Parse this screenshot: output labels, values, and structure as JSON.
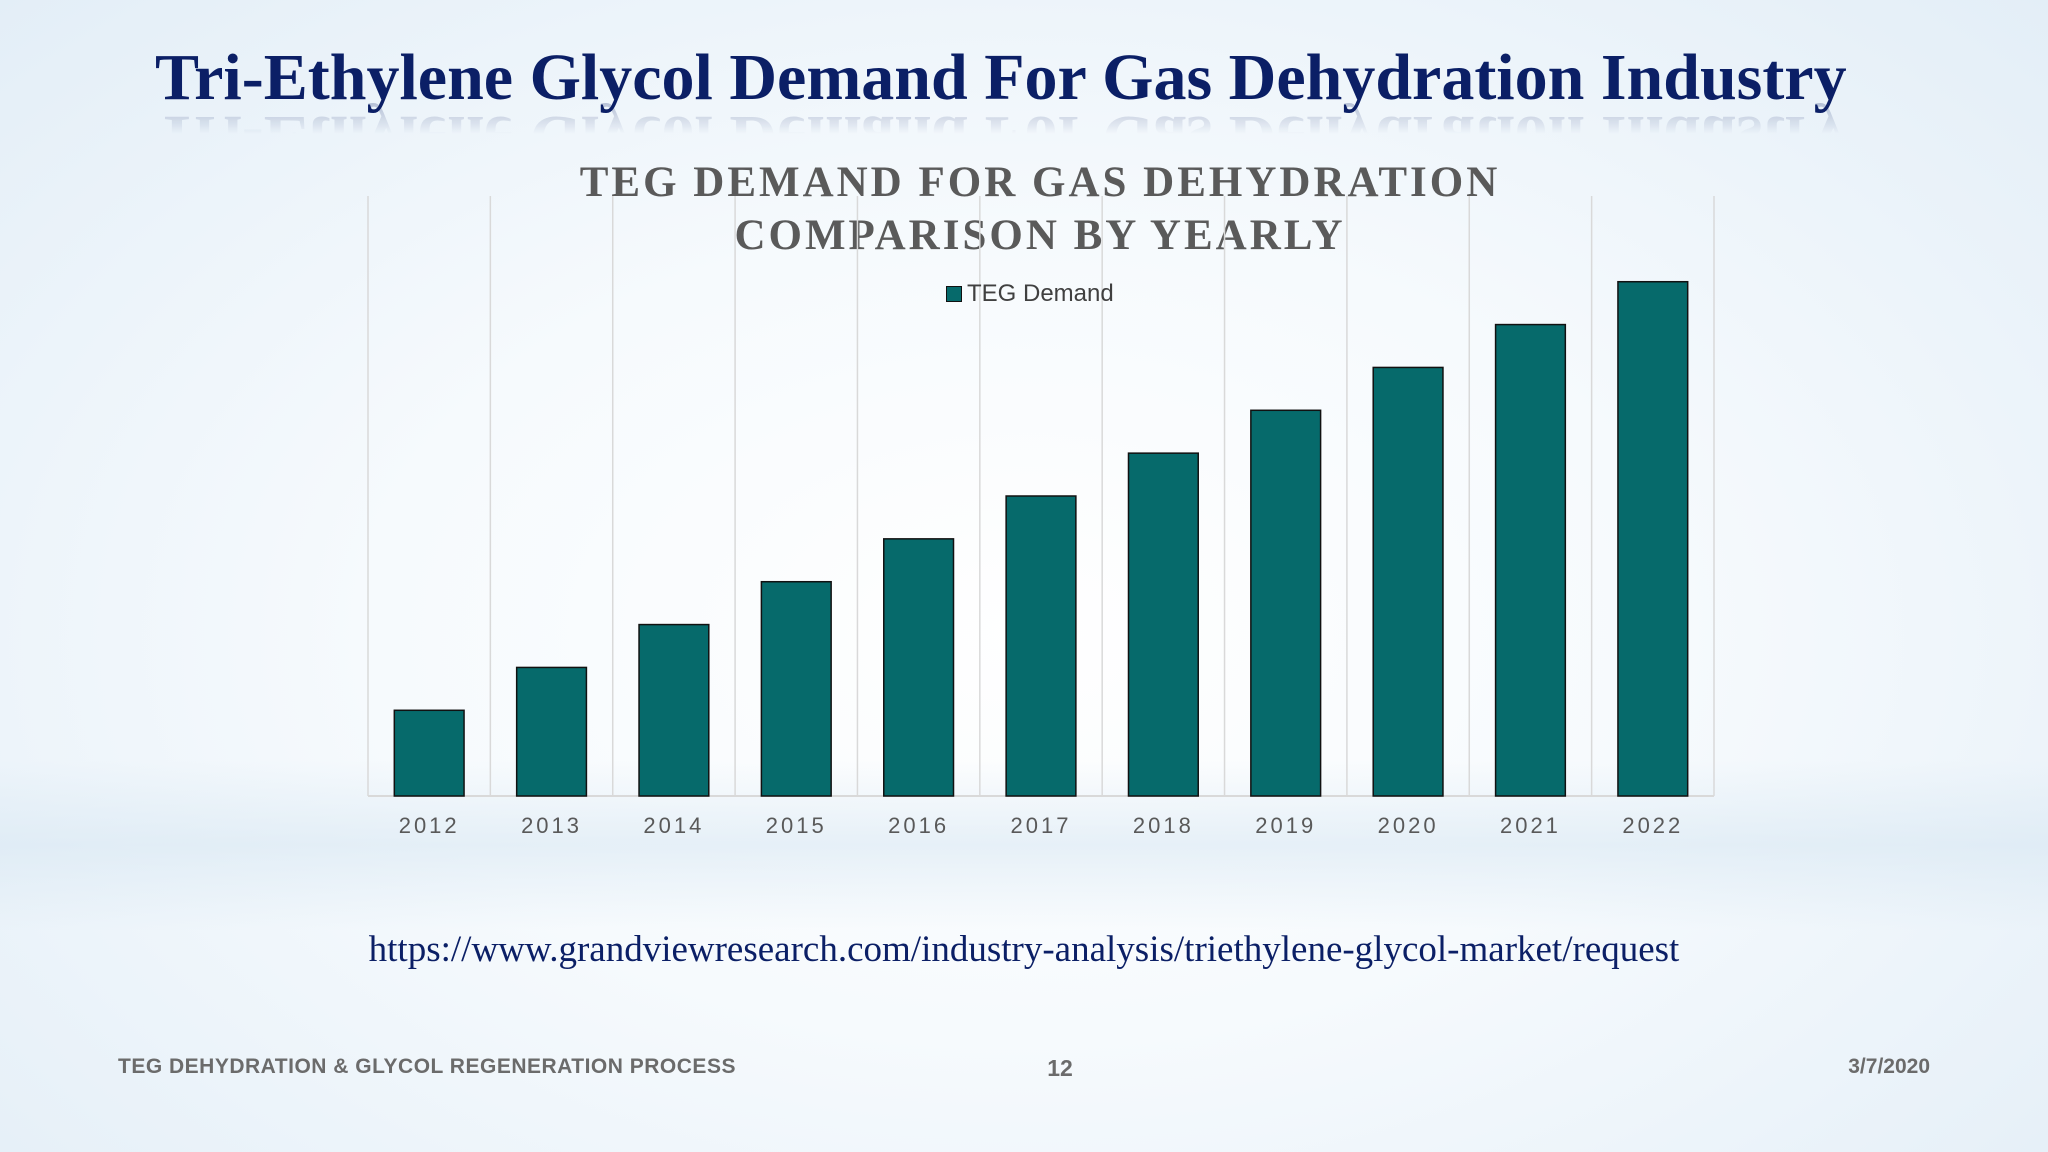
{
  "slide": {
    "title": "Tri-Ethylene Glycol Demand For Gas Dehydration Industry",
    "source_url": "https://www.grandviewresearch.com/industry-analysis/triethylene-glycol-market/request",
    "footer_left": "TEG DEHYDRATION & GLYCOL REGENERATION PROCESS",
    "page_number": "12",
    "date": "3/7/2020"
  },
  "colors": {
    "bar_fill": "#066a6b",
    "bar_stroke": "#111111",
    "title": "#0b1f66",
    "gridline": "#d9d9d9"
  },
  "chart_data": {
    "type": "bar",
    "title_lines": [
      "TEG DEMAND FOR GAS DEHYDRATION",
      "COMPARISON BY YEARLY"
    ],
    "categories": [
      "2012",
      "2013",
      "2014",
      "2015",
      "2016",
      "2017",
      "2018",
      "2019",
      "2020",
      "2021",
      "2022"
    ],
    "series": [
      {
        "name": "TEG Demand",
        "values": [
          1,
          1.5,
          2,
          2.5,
          3,
          3.5,
          4,
          4.5,
          5,
          5.5,
          6
        ]
      }
    ],
    "ylim": [
      0,
      7
    ],
    "y_axis_labels_shown": false,
    "gridlines": "vertical",
    "legend_position": "top-center"
  }
}
